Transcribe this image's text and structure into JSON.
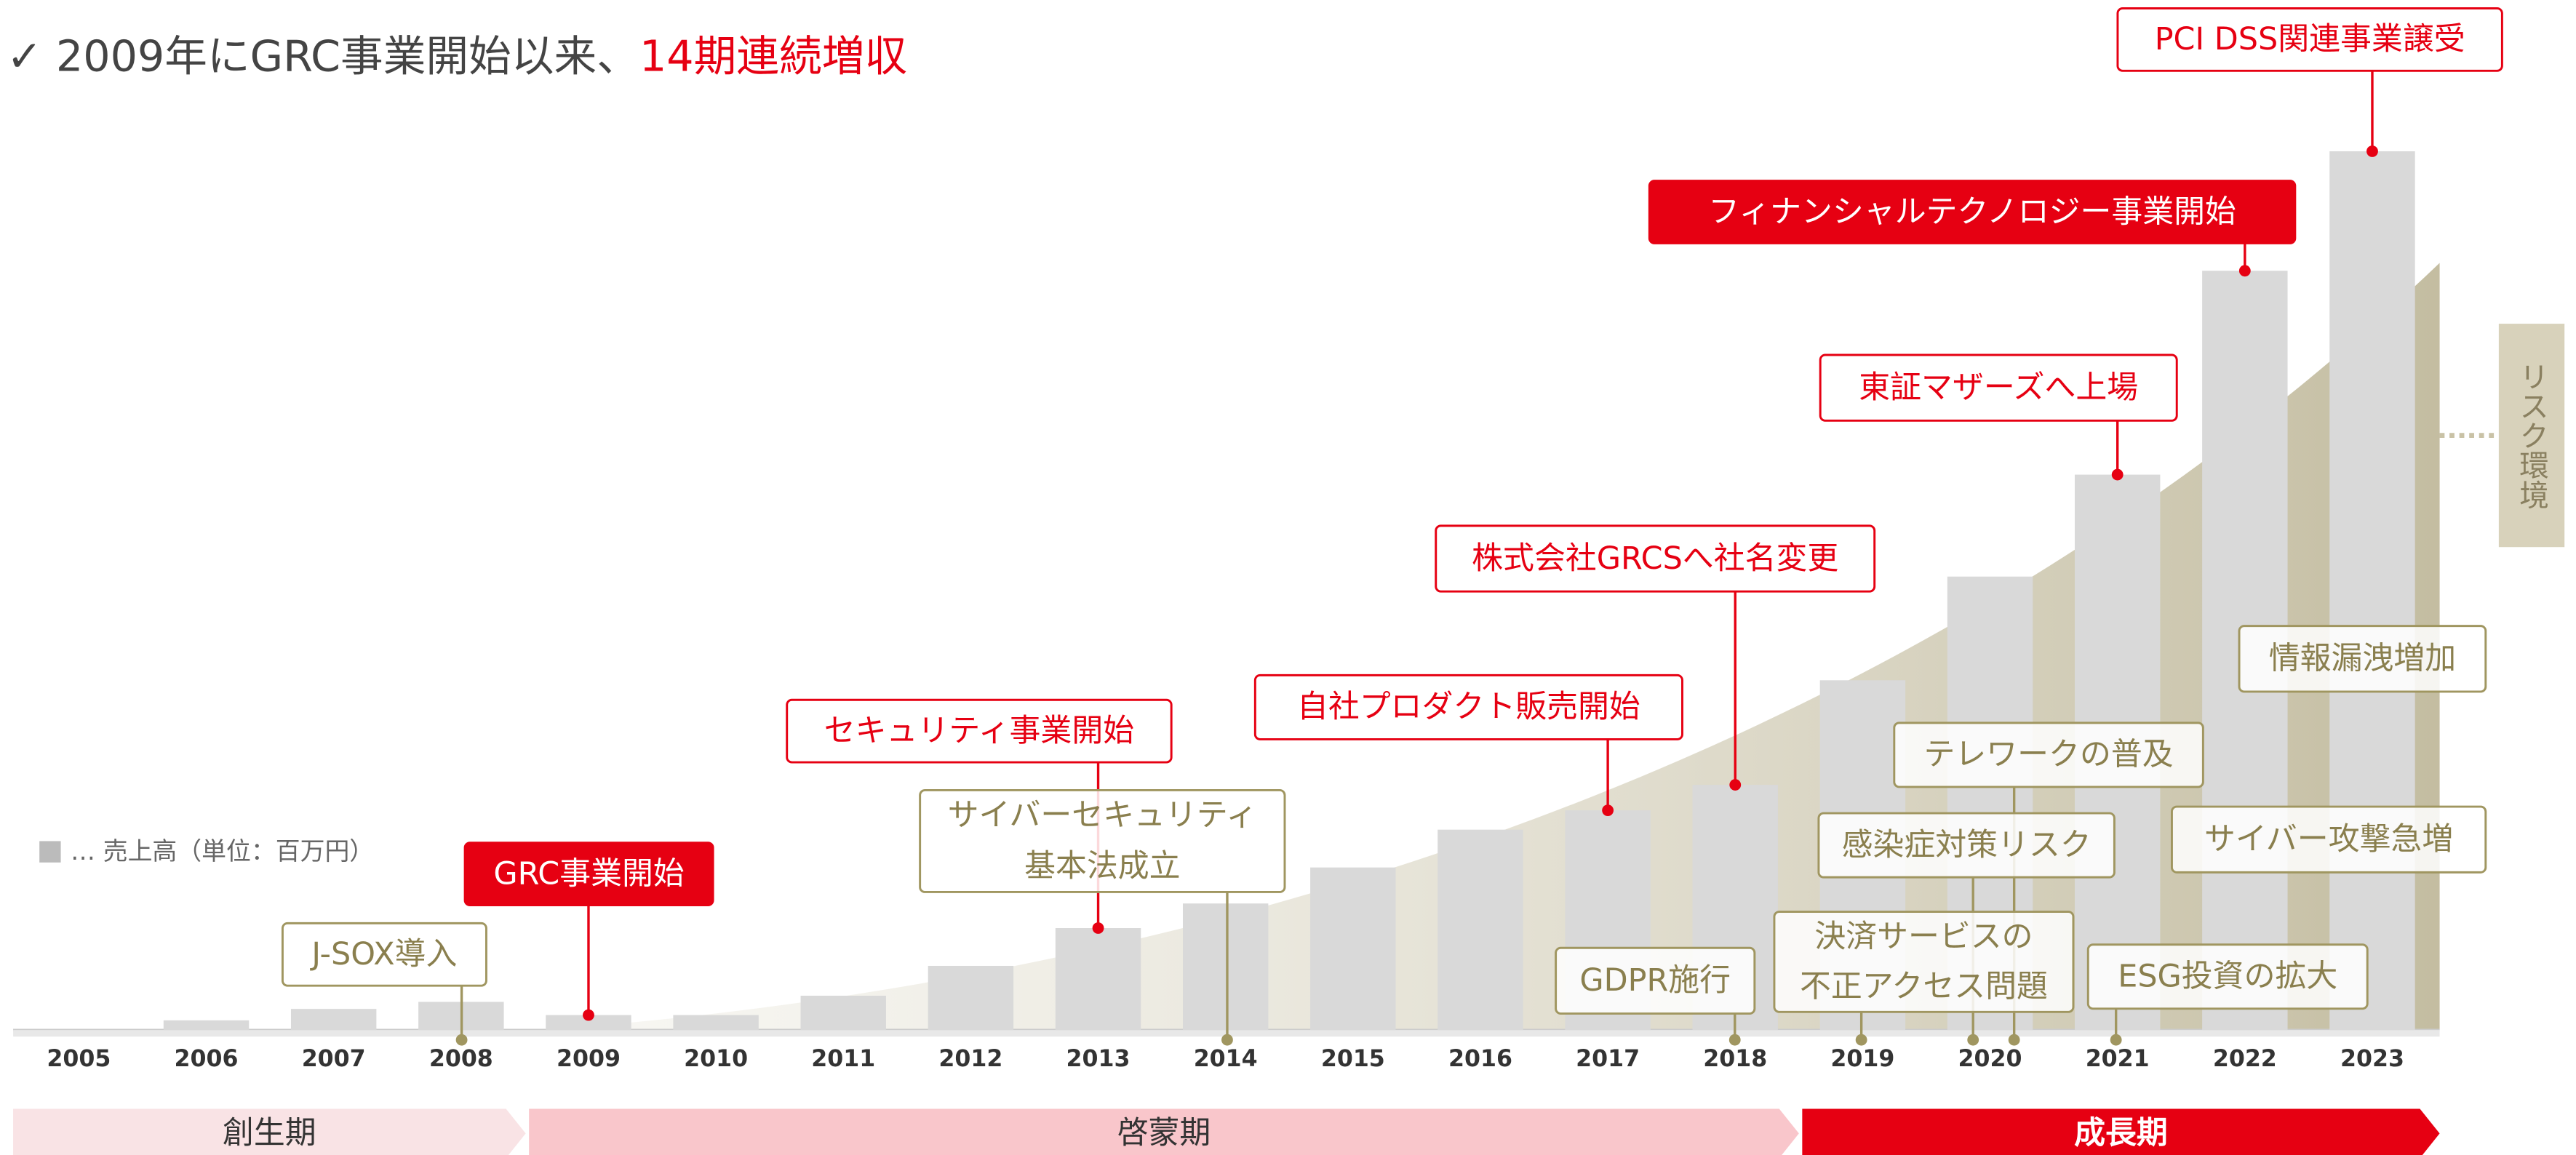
{
  "header": {
    "title": "✓ 2009年にGRC事業開始以来、",
    "title_highlight": "14期連続増収"
  },
  "legend": "… 売上高（単位：百万円）",
  "chart_data": {
    "type": "bar",
    "categories": [
      "2005",
      "2006",
      "2007",
      "2008",
      "2009",
      "2010",
      "2011",
      "2012",
      "2013",
      "2014",
      "2015",
      "2016",
      "2017",
      "2018",
      "2019",
      "2020",
      "2021",
      "2022",
      "2023"
    ],
    "values": [
      0,
      1.1,
      2.4,
      3.2,
      1.7,
      1.7,
      3.9,
      7.3,
      11.6,
      14.4,
      18.5,
      22.8,
      25,
      27.9,
      39.8,
      51.6,
      63.2,
      86.4,
      100
    ],
    "color": "#d9d9d9",
    "ylim": [
      0,
      100
    ]
  },
  "events": [
    {
      "lines": [
        "GRC事業開始"
      ]
    },
    {
      "lines": [
        "セキュリティ事業開始"
      ]
    },
    {
      "lines": [
        "自社プロダクト販売開始"
      ]
    },
    {
      "lines": [
        "株式会社GRCSへ社名変更"
      ]
    },
    {
      "lines": [
        "東証マザーズへ上場"
      ]
    },
    {
      "lines": [
        "フィナンシャルテクノロジー事業開始"
      ]
    },
    {
      "lines": [
        "PCI DSS関連事業譲受"
      ]
    }
  ],
  "risks": [
    {
      "lines": [
        "J-SOX導入"
      ]
    },
    {
      "lines": [
        "サイバーセキュリティ",
        "基本法成立"
      ]
    },
    {
      "lines": [
        "GDPR施行"
      ]
    },
    {
      "lines": [
        "決済サービスの",
        "不正アクセス問題"
      ]
    },
    {
      "lines": [
        "感染症対策リスク"
      ]
    },
    {
      "lines": [
        "テレワークの普及"
      ]
    },
    {
      "lines": [
        "ESG投資の拡大"
      ]
    },
    {
      "lines": [
        "サイバー攻撃急増"
      ]
    },
    {
      "lines": [
        "情報漏洩増加"
      ]
    }
  ],
  "phases": [
    "創生期",
    "啓蒙期",
    "成長期"
  ],
  "side_label": "リスク環境"
}
